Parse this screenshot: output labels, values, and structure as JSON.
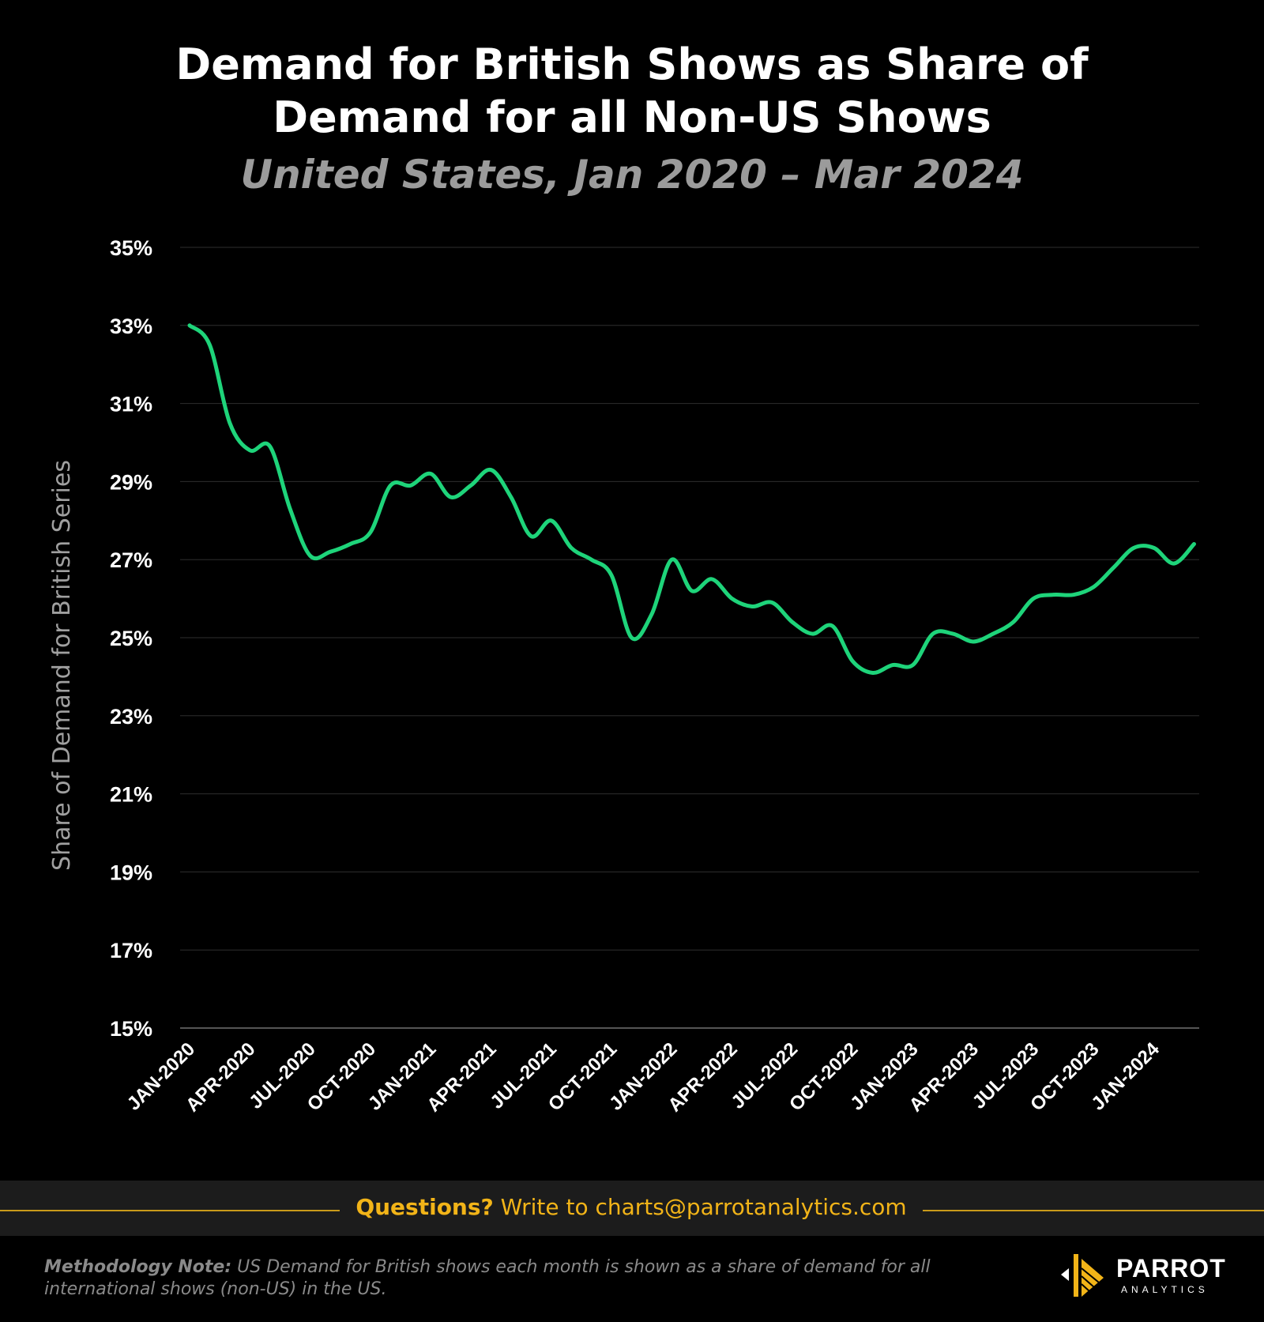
{
  "header": {
    "title_line1": "Demand for British Shows as Share of",
    "title_line2": "Demand for all Non-US Shows",
    "subtitle": "United States, Jan 2020 – Mar 2024"
  },
  "colors": {
    "background": "#000000",
    "line": "#1ed47a",
    "grid": "#2e2e2e",
    "subtitle": "#9b9b9b",
    "accent": "#f2b418"
  },
  "chart_data": {
    "type": "line",
    "ylabel": "Share of Demand for British Series",
    "xlabel": "",
    "ylim": [
      15,
      35
    ],
    "yticks": [
      15,
      17,
      19,
      21,
      23,
      25,
      27,
      29,
      31,
      33,
      35
    ],
    "ytick_labels": [
      "15%",
      "17%",
      "19%",
      "21%",
      "23%",
      "25%",
      "27%",
      "29%",
      "31%",
      "33%",
      "35%"
    ],
    "grid": true,
    "x_tick_labels": [
      "JAN-2020",
      "APR-2020",
      "JUL-2020",
      "OCT-2020",
      "JAN-2021",
      "APR-2021",
      "JUL-2021",
      "OCT-2021",
      "JAN-2022",
      "APR-2022",
      "JUL-2022",
      "OCT-2022",
      "JAN-2023",
      "APR-2023",
      "JUL-2023",
      "OCT-2023",
      "JAN-2024"
    ],
    "x_tick_index": [
      0,
      3,
      6,
      9,
      12,
      15,
      18,
      21,
      24,
      27,
      30,
      33,
      36,
      39,
      42,
      45,
      48
    ],
    "series": [
      {
        "x": [
          "2020-01",
          "2020-02",
          "2020-03",
          "2020-04",
          "2020-05",
          "2020-06",
          "2020-07",
          "2020-08",
          "2020-09",
          "2020-10",
          "2020-11",
          "2020-12",
          "2021-01",
          "2021-02",
          "2021-03",
          "2021-04",
          "2021-05",
          "2021-06",
          "2021-07",
          "2021-08",
          "2021-09",
          "2021-10",
          "2021-11",
          "2021-12",
          "2022-01",
          "2022-02",
          "2022-03",
          "2022-04",
          "2022-05",
          "2022-06",
          "2022-07",
          "2022-08",
          "2022-09",
          "2022-10",
          "2022-11",
          "2022-12",
          "2023-01",
          "2023-02",
          "2023-03",
          "2023-04",
          "2023-05",
          "2023-06",
          "2023-07",
          "2023-08",
          "2023-09",
          "2023-10",
          "2023-11",
          "2023-12",
          "2024-01",
          "2024-02",
          "2024-03"
        ],
        "values": [
          33.0,
          32.5,
          30.5,
          29.8,
          29.9,
          28.3,
          27.1,
          27.2,
          27.4,
          27.7,
          28.9,
          28.9,
          29.2,
          28.6,
          28.9,
          29.3,
          28.6,
          27.6,
          28.0,
          27.3,
          27.0,
          26.6,
          25.0,
          25.6,
          27.0,
          26.2,
          26.5,
          26.0,
          25.8,
          25.9,
          25.4,
          25.1,
          25.3,
          24.4,
          24.1,
          24.3,
          24.3,
          25.1,
          25.1,
          24.9,
          25.1,
          25.4,
          26.0,
          26.1,
          26.1,
          26.3,
          26.8,
          27.3,
          27.3,
          26.9,
          27.4
        ]
      }
    ]
  },
  "footer": {
    "questions_strong": "Questions?",
    "questions_rest": " Write to charts@parrotanalytics.com",
    "method_strong": "Methodology Note:",
    "method_rest": " US Demand for British shows each month is shown as a share of demand for all international shows (non-US) in the US.",
    "logo_name": "PARROT",
    "logo_sub": "ANALYTICS"
  }
}
